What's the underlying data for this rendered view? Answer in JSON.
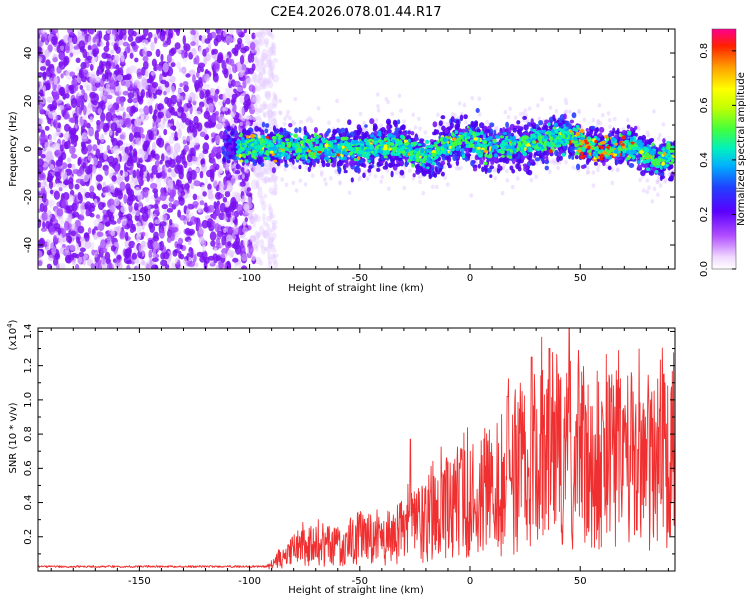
{
  "page_title": "C2E4.2026.078.01.44.R17",
  "chart_data": [
    {
      "type": "heatmap",
      "id": "spectrogram",
      "xlabel": "Height of straight line (km)",
      "ylabel": "Frequency (Hz)",
      "xlim": [
        -196,
        93
      ],
      "ylim": [
        -50,
        50
      ],
      "x_ticks": [
        -150,
        -100,
        -50,
        0,
        50
      ],
      "x_tick_labels": [
        "-150",
        "-100",
        "-50",
        "0",
        "50"
      ],
      "y_ticks": [
        -40,
        -20,
        0,
        20,
        40
      ],
      "y_tick_labels": [
        "-40",
        "-20",
        "0",
        "20",
        "40"
      ],
      "noise_region_km": [
        -196,
        -92
      ],
      "signal_band_start_km": -112,
      "signal_band_end_km": 93,
      "band_center_hz": [
        {
          "x": -110,
          "y": 1
        },
        {
          "x": -90,
          "y": 1
        },
        {
          "x": -70,
          "y": 0
        },
        {
          "x": -50,
          "y": 0
        },
        {
          "x": -35,
          "y": 2
        },
        {
          "x": -28,
          "y": 0
        },
        {
          "x": -20,
          "y": -4
        },
        {
          "x": -10,
          "y": 2
        },
        {
          "x": 0,
          "y": 4
        },
        {
          "x": 10,
          "y": 0
        },
        {
          "x": 20,
          "y": 1
        },
        {
          "x": 30,
          "y": 3
        },
        {
          "x": 45,
          "y": 5
        },
        {
          "x": 50,
          "y": 2
        },
        {
          "x": 60,
          "y": 0
        },
        {
          "x": 75,
          "y": 1
        },
        {
          "x": 85,
          "y": -5
        },
        {
          "x": 93,
          "y": -2
        }
      ],
      "colorbar": {
        "label": "Normalized spectral amplitude",
        "range": [
          0.0,
          0.88
        ],
        "ticks": [
          0.0,
          0.2,
          0.4,
          0.6,
          0.8
        ],
        "tick_labels": [
          "0.0",
          "0.2",
          "0.4",
          "0.6",
          "0.8"
        ],
        "colormap": [
          "#ffffff",
          "#b84cff",
          "#5a00ff",
          "#2040ff",
          "#00b0ff",
          "#00f0c0",
          "#40ff40",
          "#c0ff00",
          "#ffff00",
          "#ffa000",
          "#ff2000",
          "#ff0090"
        ]
      }
    },
    {
      "type": "line",
      "id": "snr",
      "xlabel": "Height of straight line (km)",
      "ylabel": "SNR (10 * v/v)",
      "multiplier_label": "(x10",
      "multiplier_exponent": "4",
      "multiplier_close": ")",
      "xlim": [
        -196,
        93
      ],
      "ylim": [
        0,
        1.42
      ],
      "x_ticks": [
        -150,
        -100,
        -50,
        0,
        50
      ],
      "x_tick_labels": [
        "-150",
        "-100",
        "-50",
        "0",
        "50"
      ],
      "y_ticks": [
        0.2,
        0.4,
        0.6,
        0.8,
        1.0,
        1.2,
        1.4
      ],
      "y_tick_labels": [
        "0.2",
        "0.4",
        "0.6",
        "0.8",
        "1.0",
        "1.2",
        "1.4"
      ],
      "line_color": "#f03030",
      "envelope": [
        {
          "x": -196,
          "y": 0.02
        },
        {
          "x": -100,
          "y": 0.02
        },
        {
          "x": -90,
          "y": 0.04
        },
        {
          "x": -80,
          "y": 0.14
        },
        {
          "x": -70,
          "y": 0.18
        },
        {
          "x": -60,
          "y": 0.16
        },
        {
          "x": -50,
          "y": 0.22
        },
        {
          "x": -40,
          "y": 0.2
        },
        {
          "x": -30,
          "y": 0.28
        },
        {
          "x": -20,
          "y": 0.34
        },
        {
          "x": -10,
          "y": 0.42
        },
        {
          "x": 0,
          "y": 0.48
        },
        {
          "x": 10,
          "y": 0.54
        },
        {
          "x": 20,
          "y": 0.64
        },
        {
          "x": 30,
          "y": 0.74
        },
        {
          "x": 40,
          "y": 0.8
        },
        {
          "x": 50,
          "y": 0.76
        },
        {
          "x": 60,
          "y": 0.72
        },
        {
          "x": 70,
          "y": 0.72
        },
        {
          "x": 80,
          "y": 0.74
        },
        {
          "x": 93,
          "y": 0.74
        }
      ],
      "peaks": [
        {
          "x": 45,
          "y": 1.42
        },
        {
          "x": 36,
          "y": 1.3
        },
        {
          "x": 28,
          "y": 1.25
        },
        {
          "x": 88,
          "y": 1.15
        },
        {
          "x": 17,
          "y": 1.02
        },
        {
          "x": -27,
          "y": 0.77
        }
      ]
    }
  ]
}
